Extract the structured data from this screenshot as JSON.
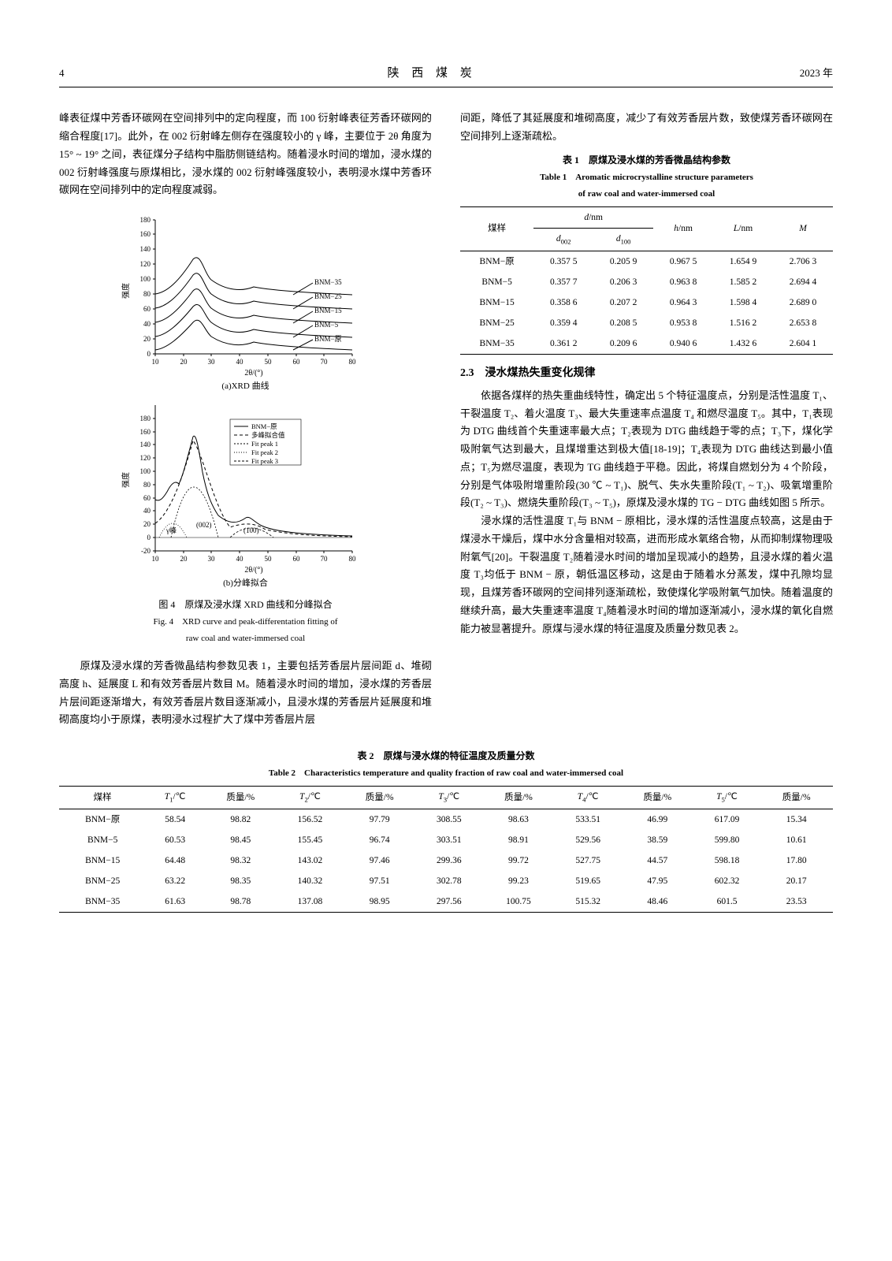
{
  "header": {
    "page": "4",
    "journal": "陕 西 煤 炭",
    "year": "2023 年"
  },
  "left": {
    "p1": "峰表征煤中芳香环碳网在空间排列中的定向程度，而 100 衍射峰表征芳香环碳网的缩合程度[17]。此外，在 002 衍射峰左侧存在强度较小的 γ 峰，主要位于 2θ 角度为 15° ~ 19° 之间，表征煤分子结构中脂肪侧链结构。随着浸水时间的增加，浸水煤的 002 衍射峰强度与原煤相比，浸水煤的 002 衍射峰强度较小，表明浸水煤中芳香环碳网在空间排列中的定向程度减弱。",
    "fig4": {
      "cap_cn": "图 4　原煤及浸水煤 XRD 曲线和分峰拟合",
      "cap_en_1": "Fig. 4　XRD curve and peak-differentation fitting of",
      "cap_en_2": "raw coal and water-immersed coal",
      "a_label": "(a)XRD 曲线",
      "b_label": "(b)分峰拟合",
      "x_label": "2θ/(°)",
      "y_label": "强度",
      "y2_label": "强度",
      "legend_a": [
        "BNM−35",
        "BNM−25",
        "BNM−15",
        "BNM−5",
        "BNM−原"
      ],
      "legend_b": [
        "BNM−原",
        "多峰拟合值",
        "Fit peak 1",
        "Fit peak 2",
        "Fit peak 3"
      ],
      "label_002": "(002)",
      "label_gamma": "γ峰",
      "label_100": "(100)",
      "yticks_a": [
        0,
        20,
        40,
        60,
        80,
        100,
        120,
        140,
        160,
        180
      ],
      "yticks_b": [
        -20,
        0,
        20,
        40,
        60,
        80,
        100,
        120,
        140,
        160,
        180
      ],
      "xticks": [
        10,
        20,
        30,
        40,
        50,
        60,
        70,
        80
      ],
      "colors": {
        "axis": "#000000",
        "series": [
          "#000000",
          "#000000",
          "#000000",
          "#000000",
          "#000000"
        ],
        "fit_fill": [
          "#cccccc",
          "#aaaaaa",
          "#dddddd"
        ]
      }
    },
    "p2": "　　原煤及浸水煤的芳香微晶结构参数见表 1，主要包括芳香层片层间距 d、堆砌高度 h、延展度 L 和有效芳香层片数目 M。随着浸水时间的增加，浸水煤的芳香层片层间距逐渐增大，有效芳香层片数目逐渐减小，且浸水煤的芳香层片延展度和堆砌高度均小于原煤，表明浸水过程扩大了煤中芳香层片层"
  },
  "right": {
    "p0": "间距，降低了其延展度和堆砌高度，减少了有效芳香层片数，致使煤芳香环碳网在空间排列上逐渐疏松。",
    "table1": {
      "title_cn": "表 1　原煤及浸水煤的芳香微晶结构参数",
      "title_en_1": "Table 1　Aromatic microcrystalline structure parameters",
      "title_en_2": "of raw coal and water-immersed coal",
      "h_sample": "煤样",
      "h_d": "d/nm",
      "h_d002": "d₀₀₂",
      "h_d100": "d₁₀₀",
      "h_h": "h/nm",
      "h_L": "L/nm",
      "h_M": "M",
      "rows": [
        [
          "BNM−原",
          "0.357 5",
          "0.205 9",
          "0.967 5",
          "1.654 9",
          "2.706 3"
        ],
        [
          "BNM−5",
          "0.357 7",
          "0.206 3",
          "0.963 8",
          "1.585 2",
          "2.694 4"
        ],
        [
          "BNM−15",
          "0.358 6",
          "0.207 2",
          "0.964 3",
          "1.598 4",
          "2.689 0"
        ],
        [
          "BNM−25",
          "0.359 4",
          "0.208 5",
          "0.953 8",
          "1.516 2",
          "2.653 8"
        ],
        [
          "BNM−35",
          "0.361 2",
          "0.209 6",
          "0.940 6",
          "1.432 6",
          "2.604 1"
        ]
      ]
    },
    "sec23": "2.3　浸水煤热失重变化规律",
    "p1": "　　依据各煤样的热失重曲线特性，确定出 5 个特征温度点，分别是活性温度 T₁、干裂温度 T₂、着火温度 T₃、最大失重速率点温度 T₄ 和燃尽温度 T₅。其中，T₁表现为 DTG 曲线首个失重速率最大点；T₂表现为 DTG 曲线趋于零的点；T₃下，煤化学吸附氧气达到最大，且煤增重达到极大值[18-19]；T₄表现为 DTG 曲线达到最小值点；T₅为燃尽温度，表现为 TG 曲线趋于平稳。因此，将煤自燃划分为 4 个阶段，分别是气体吸附增重阶段(30 ℃ ~ T₁)、脱气、失水失重阶段(T₁ ~ T₂)、吸氧增重阶段(T₂ ~ T₃)、燃烧失重阶段(T₃ ~ T₅)，原煤及浸水煤的 TG − DTG 曲线如图 5 所示。",
    "p2": "　　浸水煤的活性温度 T₁与 BNM − 原相比，浸水煤的活性温度点较高，这是由于煤浸水干燥后，煤中水分含量相对较高，进而形成水氧络合物，从而抑制煤物理吸附氧气[20]。干裂温度 T₂随着浸水时间的增加呈现减小的趋势，且浸水煤的着火温度 T₃均低于 BNM − 原，朝低温区移动，这是由于随着水分蒸发，煤中孔隙均显现，且煤芳香环碳网的空间排列逐渐疏松，致使煤化学吸附氧气加快。随着温度的继续升高，最大失重速率温度 T₄随着浸水时间的增加逐渐减小，浸水煤的氧化自燃能力被显著提升。原煤与浸水煤的特征温度及质量分数见表 2。"
  },
  "table2": {
    "title_cn": "表 2　原煤与浸水煤的特征温度及质量分数",
    "title_en": "Table 2　Characteristics temperature and quality fraction of raw coal and water-immersed coal",
    "headers": [
      "煤样",
      "T₁/℃",
      "质量/%",
      "T₂/℃",
      "质量/%",
      "T₃/℃",
      "质量/%",
      "T₄/℃",
      "质量/%",
      "T₅/℃",
      "质量/%"
    ],
    "rows": [
      [
        "BNM−原",
        "58.54",
        "98.82",
        "156.52",
        "97.79",
        "308.55",
        "98.63",
        "533.51",
        "46.99",
        "617.09",
        "15.34"
      ],
      [
        "BNM−5",
        "60.53",
        "98.45",
        "155.45",
        "96.74",
        "303.51",
        "98.91",
        "529.56",
        "38.59",
        "599.80",
        "10.61"
      ],
      [
        "BNM−15",
        "64.48",
        "98.32",
        "143.02",
        "97.46",
        "299.36",
        "99.72",
        "527.75",
        "44.57",
        "598.18",
        "17.80"
      ],
      [
        "BNM−25",
        "63.22",
        "98.35",
        "140.32",
        "97.51",
        "302.78",
        "99.23",
        "519.65",
        "47.95",
        "602.32",
        "20.17"
      ],
      [
        "BNM−35",
        "61.63",
        "98.78",
        "137.08",
        "98.95",
        "297.56",
        "100.75",
        "515.32",
        "48.46",
        "601.5",
        "23.53"
      ]
    ]
  }
}
